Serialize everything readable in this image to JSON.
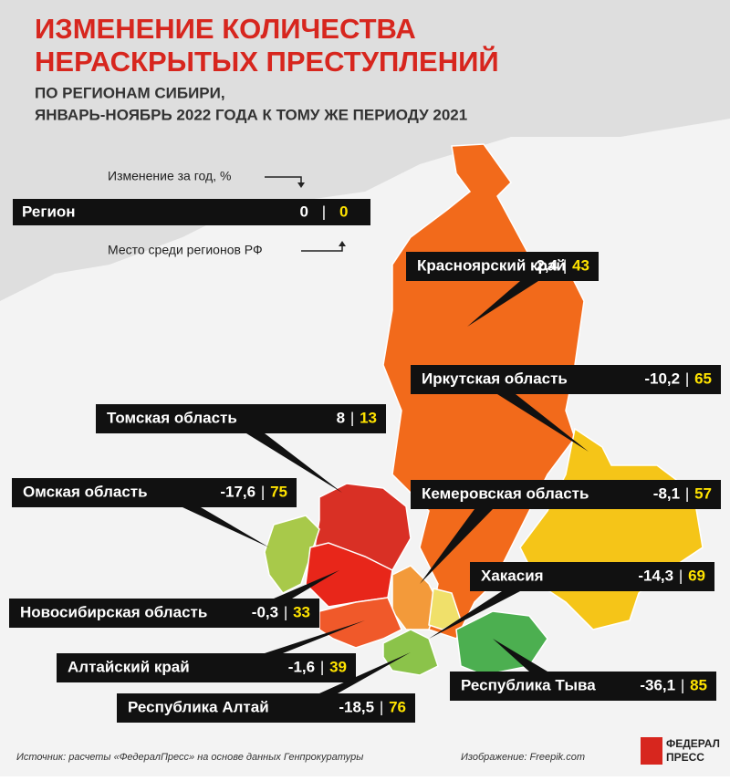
{
  "header": {
    "title_lines": [
      "ИЗМЕНЕНИЕ КОЛИЧЕСТВА",
      "НЕРАСКРЫТЫХ ПРЕСТУПЛЕНИЙ"
    ],
    "subtitle_lines": [
      "ПО РЕГИОНАМ СИБИРИ,",
      "ЯНВАРЬ-НОЯБРЬ 2022 ГОДА К ТОМУ ЖЕ ПЕРИОДУ 2021"
    ]
  },
  "legend": {
    "change_caption": "Изменение за год, %",
    "rank_caption": "Место среди регионов РФ",
    "sample_region": "Регион",
    "sample_change": "0",
    "sample_rank": "0",
    "separator": "|"
  },
  "regions": [
    {
      "name": "Красноярский край",
      "change": "-2,4",
      "rank": "43"
    },
    {
      "name": "Иркутская область",
      "change": "-10,2",
      "rank": "65"
    },
    {
      "name": "Томская область",
      "change": "8",
      "rank": "13"
    },
    {
      "name": "Омская область",
      "change": "-17,6",
      "rank": "75"
    },
    {
      "name": "Кемеровская область",
      "change": "-8,1",
      "rank": "57"
    },
    {
      "name": "Хакасия",
      "change": "-14,3",
      "rank": "69"
    },
    {
      "name": "Новосибирская область",
      "change": "-0,3",
      "rank": "33"
    },
    {
      "name": "Алтайский край",
      "change": "-1,6",
      "rank": "39"
    },
    {
      "name": "Республика Алтай",
      "change": "-18,5",
      "rank": "76"
    },
    {
      "name": "Республика Тыва",
      "change": "-36,1",
      "rank": "85"
    }
  ],
  "footer": {
    "source": "Источник: расчеты «ФедералПресс» на основе данных Генпрокуратуры",
    "image_credit": "Изображение: Freepik.com",
    "logo_lines": [
      "ФЕДЕРАЛ",
      "ПРЕСС"
    ]
  }
}
